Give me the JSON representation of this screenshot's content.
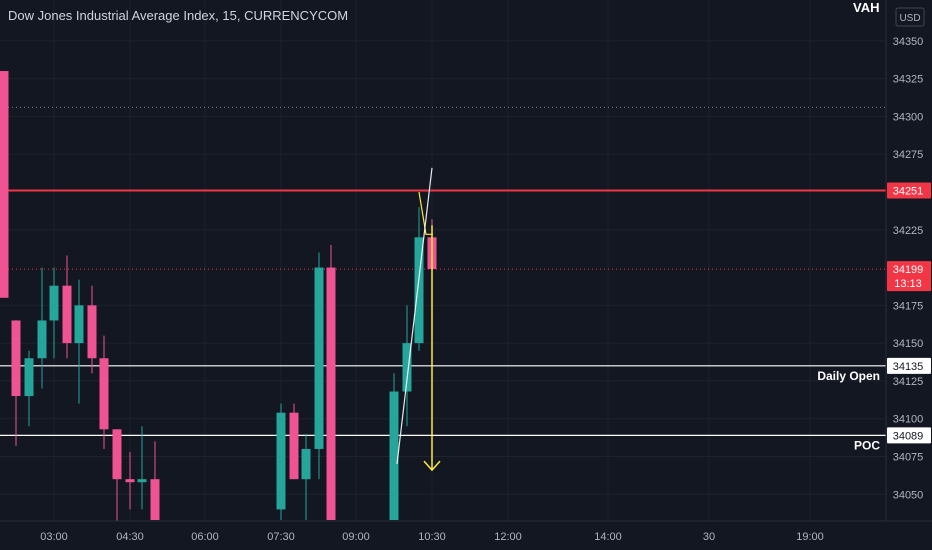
{
  "chart_data": {
    "type": "candlestick",
    "title": "Dow Jones Industrial Average Index, 15, CURRENCYCOM",
    "currency": "USD",
    "ylim": [
      34033,
      34377
    ],
    "y_ticks": [
      34050,
      34075,
      34100,
      34125,
      34150,
      34175,
      34225,
      34275,
      34300,
      34325,
      34350
    ],
    "x_ticks": [
      "03:00",
      "04:30",
      "06:00",
      "07:30",
      "09:00",
      "10:30",
      "12:00",
      "14:00",
      "30",
      "19:00"
    ],
    "candles": [
      {
        "open": 34330,
        "high": 34330,
        "low": 34180,
        "close": 34180
      },
      {
        "open": 34165,
        "high": 34165,
        "low": 34082,
        "close": 34115
      },
      {
        "open": 34115,
        "high": 34145,
        "low": 34095,
        "close": 34140
      },
      {
        "open": 34140,
        "high": 34200,
        "low": 34120,
        "close": 34165
      },
      {
        "open": 34165,
        "high": 34200,
        "low": 34140,
        "close": 34188
      },
      {
        "open": 34188,
        "high": 34208,
        "low": 34140,
        "close": 34150
      },
      {
        "open": 34150,
        "high": 34192,
        "low": 34110,
        "close": 34175
      },
      {
        "open": 34175,
        "high": 34188,
        "low": 34130,
        "close": 34140
      },
      {
        "open": 34140,
        "high": 34155,
        "low": 34080,
        "close": 34093
      },
      {
        "open": 34093,
        "high": 34093,
        "low": 34030,
        "close": 34060
      },
      {
        "open": 34060,
        "high": 34078,
        "low": 34040,
        "close": 34058
      },
      {
        "open": 34058,
        "high": 34095,
        "low": 34040,
        "close": 34060
      },
      {
        "open": 34060,
        "high": 34085,
        "low": 34033,
        "close": 34033
      },
      {
        "open": 34040,
        "high": 34110,
        "low": 34033,
        "close": 34104
      },
      {
        "open": 34104,
        "high": 34110,
        "low": 34060,
        "close": 34060
      },
      {
        "open": 34060,
        "high": 34090,
        "low": 34033,
        "close": 34080
      },
      {
        "open": 34080,
        "high": 34210,
        "low": 34060,
        "close": 34200
      },
      {
        "open": 34200,
        "high": 34215,
        "low": 34033,
        "close": 34033
      },
      {
        "open": 34033,
        "high": 34130,
        "low": 34033,
        "close": 34118
      },
      {
        "open": 34118,
        "high": 34175,
        "low": 34095,
        "close": 34150
      },
      {
        "open": 34150,
        "high": 34240,
        "low": 34145,
        "close": 34220
      },
      {
        "open": 34220,
        "high": 34232,
        "low": 34195,
        "close": 34199
      }
    ],
    "horizontal_lines": [
      {
        "value": 34251,
        "label": "34251",
        "color": "#f23645",
        "style": "solid"
      },
      {
        "value": 34199,
        "label": "34199",
        "sublabel": "13:13",
        "color": "#f23645",
        "style": "dotted"
      },
      {
        "value": 34306,
        "label": "",
        "color": "#787b86",
        "style": "dotted"
      },
      {
        "value": 34135,
        "label": "34135",
        "name": "Daily Open",
        "color": "#ffffff",
        "style": "solid"
      },
      {
        "value": 34089,
        "label": "34089",
        "name": "POC",
        "color": "#ffffff",
        "style": "solid"
      }
    ],
    "vah_label": "VAH",
    "annotations": [
      {
        "type": "arrow",
        "from": 34228,
        "to": 34066,
        "color": "#ffeb3b"
      },
      {
        "type": "zigzag",
        "color": "#ffeb3b"
      },
      {
        "type": "trend",
        "color": "#ffffff"
      }
    ],
    "colors": {
      "up": "#26a69a",
      "down": "#ef5391",
      "background": "#131722",
      "grid": "#1e222d",
      "axis_text": "#b2b5be",
      "accent": "#f23645",
      "arrow": "#ffeb3b"
    }
  }
}
